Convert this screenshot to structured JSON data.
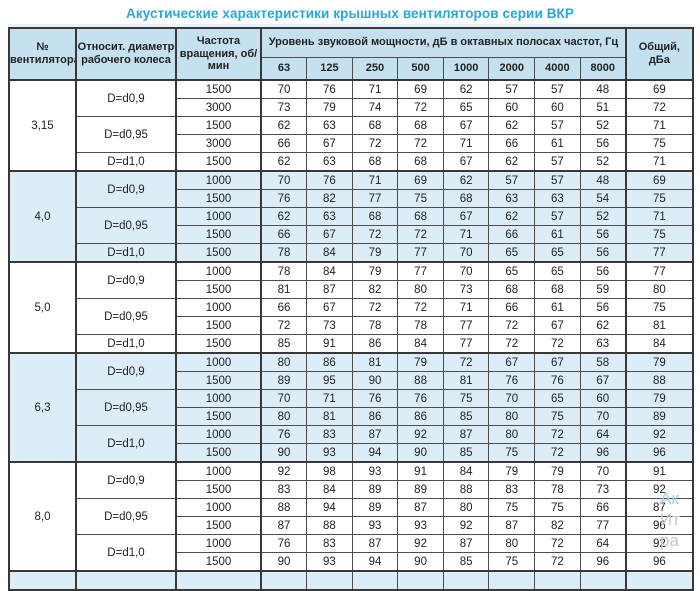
{
  "title": "Акустические характеристики крышных вентиляторов серии ВКР",
  "accent_colors": {
    "title_text": "#2aa5d8",
    "header_bg": "#c5e0ef",
    "group_shade_bg": "#dcedf8",
    "border": "#383838"
  },
  "watermark": {
    "line1": "Ак",
    "line2": "Ит",
    "line3": "ра"
  },
  "table": {
    "headers": {
      "fan_number": "№ вентилятора",
      "rel_diameter": "Относит. диаметр рабочего колеса",
      "speed": "Частота вращения, об/мин",
      "spl_group": "Уровень звуковой мощности, дБ в октавных полосах частот, Гц",
      "freq_bands": [
        "63",
        "125",
        "250",
        "500",
        "1000",
        "2000",
        "4000",
        "8000"
      ],
      "total": "Общий, дБа"
    },
    "groups": [
      {
        "fan": "3,15",
        "shade": false,
        "diameters": [
          {
            "label": "D=d0,9",
            "rows": [
              {
                "speed": "1500",
                "values": [
                  70,
                  76,
                  71,
                  69,
                  62,
                  57,
                  57,
                  48
                ],
                "total": 69
              },
              {
                "speed": "3000",
                "values": [
                  73,
                  79,
                  74,
                  72,
                  65,
                  60,
                  60,
                  51
                ],
                "total": 72
              }
            ]
          },
          {
            "label": "D=d0,95",
            "rows": [
              {
                "speed": "1500",
                "values": [
                  62,
                  63,
                  68,
                  68,
                  67,
                  62,
                  57,
                  52
                ],
                "total": 71
              },
              {
                "speed": "3000",
                "values": [
                  66,
                  67,
                  72,
                  72,
                  71,
                  66,
                  61,
                  56
                ],
                "total": 75
              }
            ]
          },
          {
            "label": "D=d1,0",
            "rows": [
              {
                "speed": "1500",
                "values": [
                  62,
                  63,
                  68,
                  68,
                  67,
                  62,
                  57,
                  52
                ],
                "total": 71
              }
            ]
          }
        ]
      },
      {
        "fan": "4,0",
        "shade": true,
        "diameters": [
          {
            "label": "D=d0,9",
            "rows": [
              {
                "speed": "1000",
                "values": [
                  70,
                  76,
                  71,
                  69,
                  62,
                  57,
                  57,
                  48
                ],
                "total": 69
              },
              {
                "speed": "1500",
                "values": [
                  76,
                  82,
                  77,
                  75,
                  68,
                  63,
                  63,
                  54
                ],
                "total": 75
              }
            ]
          },
          {
            "label": "D=d0,95",
            "rows": [
              {
                "speed": "1000",
                "values": [
                  62,
                  63,
                  68,
                  68,
                  67,
                  62,
                  57,
                  52
                ],
                "total": 71
              },
              {
                "speed": "1500",
                "values": [
                  66,
                  67,
                  72,
                  72,
                  71,
                  66,
                  61,
                  56
                ],
                "total": 75
              }
            ]
          },
          {
            "label": "D=d1,0",
            "rows": [
              {
                "speed": "1500",
                "values": [
                  78,
                  84,
                  79,
                  77,
                  70,
                  65,
                  65,
                  56
                ],
                "total": 77
              }
            ]
          }
        ]
      },
      {
        "fan": "5,0",
        "shade": false,
        "diameters": [
          {
            "label": "D=d0,9",
            "rows": [
              {
                "speed": "1000",
                "values": [
                  78,
                  84,
                  79,
                  77,
                  70,
                  65,
                  65,
                  56
                ],
                "total": 77
              },
              {
                "speed": "1500",
                "values": [
                  81,
                  87,
                  82,
                  80,
                  73,
                  68,
                  68,
                  59
                ],
                "total": 80
              }
            ]
          },
          {
            "label": "D=d0,95",
            "rows": [
              {
                "speed": "1000",
                "values": [
                  66,
                  67,
                  72,
                  72,
                  71,
                  66,
                  61,
                  56
                ],
                "total": 75
              },
              {
                "speed": "1500",
                "values": [
                  72,
                  73,
                  78,
                  78,
                  77,
                  72,
                  67,
                  62
                ],
                "total": 81
              }
            ]
          },
          {
            "label": "D=d1,0",
            "rows": [
              {
                "speed": "1500",
                "values": [
                  85,
                  91,
                  86,
                  84,
                  77,
                  72,
                  72,
                  63
                ],
                "total": 84
              }
            ]
          }
        ]
      },
      {
        "fan": "6,3",
        "shade": true,
        "diameters": [
          {
            "label": "D=d0,9",
            "rows": [
              {
                "speed": "1000",
                "values": [
                  80,
                  86,
                  81,
                  79,
                  72,
                  67,
                  67,
                  58
                ],
                "total": 79
              },
              {
                "speed": "1500",
                "values": [
                  89,
                  95,
                  90,
                  88,
                  81,
                  76,
                  76,
                  67
                ],
                "total": 88
              }
            ]
          },
          {
            "label": "D=d0,95",
            "rows": [
              {
                "speed": "1000",
                "values": [
                  70,
                  71,
                  76,
                  76,
                  75,
                  70,
                  65,
                  60
                ],
                "total": 79
              },
              {
                "speed": "1500",
                "values": [
                  80,
                  81,
                  86,
                  86,
                  85,
                  80,
                  75,
                  70
                ],
                "total": 89
              }
            ]
          },
          {
            "label": "D=d1,0",
            "rows": [
              {
                "speed": "1000",
                "values": [
                  76,
                  83,
                  87,
                  92,
                  87,
                  80,
                  72,
                  64
                ],
                "total": 92
              },
              {
                "speed": "1500",
                "values": [
                  90,
                  93,
                  94,
                  90,
                  85,
                  75,
                  72,
                  96
                ],
                "total": 96
              }
            ]
          }
        ]
      },
      {
        "fan": "8,0",
        "shade": false,
        "diameters": [
          {
            "label": "D=d0,9",
            "rows": [
              {
                "speed": "1000",
                "values": [
                  92,
                  98,
                  93,
                  91,
                  84,
                  79,
                  79,
                  70
                ],
                "total": 91
              },
              {
                "speed": "1500",
                "values": [
                  83,
                  84,
                  89,
                  89,
                  88,
                  83,
                  78,
                  73
                ],
                "total": 92
              }
            ]
          },
          {
            "label": "D=d0,95",
            "rows": [
              {
                "speed": "1000",
                "values": [
                  88,
                  94,
                  89,
                  87,
                  80,
                  75,
                  75,
                  66
                ],
                "total": 87
              },
              {
                "speed": "1500",
                "values": [
                  87,
                  88,
                  93,
                  93,
                  92,
                  87,
                  82,
                  77
                ],
                "total": 96
              }
            ]
          },
          {
            "label": "D=d1,0",
            "rows": [
              {
                "speed": "1000",
                "values": [
                  76,
                  83,
                  87,
                  92,
                  87,
                  80,
                  72,
                  64
                ],
                "total": 92
              },
              {
                "speed": "1500",
                "values": [
                  90,
                  93,
                  94,
                  90,
                  85,
                  75,
                  72,
                  96
                ],
                "total": 96
              }
            ]
          }
        ]
      }
    ]
  }
}
